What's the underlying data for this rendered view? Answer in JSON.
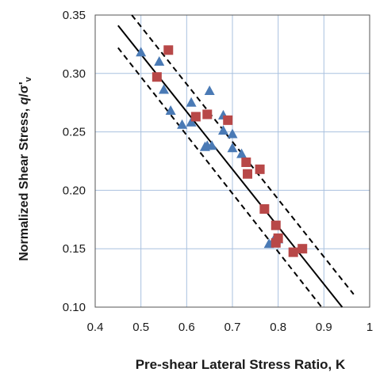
{
  "chart_data": {
    "type": "scatter",
    "title": "",
    "xlabel": "Pre-shear Lateral Stress Ratio, K",
    "ylabel_main": "Normalized Shear Stress, ",
    "ylabel_q": "q",
    "ylabel_slash": "/σ'",
    "ylabel_sub": "v",
    "xlim": [
      0.4,
      1.0
    ],
    "ylim": [
      0.1,
      0.35
    ],
    "xticks": [
      0.4,
      0.5,
      0.6,
      0.7,
      0.8,
      0.9,
      1.0
    ],
    "xtick_labels": [
      "0.4",
      "0.5",
      "0.6",
      "0.7",
      "0.8",
      "0.9",
      "1"
    ],
    "yticks": [
      0.1,
      0.15,
      0.2,
      0.25,
      0.3,
      0.35
    ],
    "ytick_labels": [
      "0.10",
      "0.15",
      "0.20",
      "0.25",
      "0.30",
      "0.35"
    ],
    "grid": true,
    "colors": {
      "triangle": "#4a7ab5",
      "square": "#b84848",
      "grid": "#a9c1df",
      "line": "#000000"
    },
    "series": [
      {
        "marker": "triangle",
        "x": [
          0.5,
          0.54,
          0.55,
          0.565,
          0.59,
          0.61,
          0.61,
          0.64,
          0.645,
          0.65,
          0.655,
          0.68,
          0.68,
          0.7,
          0.7,
          0.72,
          0.78,
          0.79,
          0.8
        ],
        "y": [
          0.318,
          0.31,
          0.286,
          0.268,
          0.256,
          0.275,
          0.258,
          0.237,
          0.238,
          0.285,
          0.238,
          0.264,
          0.251,
          0.248,
          0.236,
          0.231,
          0.154,
          0.157,
          0.158
        ]
      },
      {
        "marker": "square",
        "x": [
          0.535,
          0.56,
          0.62,
          0.645,
          0.69,
          0.73,
          0.733,
          0.76,
          0.77,
          0.795,
          0.795,
          0.8,
          0.833,
          0.853
        ],
        "y": [
          0.297,
          0.32,
          0.263,
          0.265,
          0.26,
          0.224,
          0.214,
          0.218,
          0.184,
          0.17,
          0.155,
          0.159,
          0.147,
          0.15
        ]
      }
    ],
    "lines": [
      {
        "style": "solid",
        "x": [
          0.45,
          0.94
        ],
        "y": [
          0.341,
          0.1
        ]
      },
      {
        "style": "dashed",
        "x": [
          0.48,
          0.965
        ],
        "y": [
          0.35,
          0.111
        ]
      },
      {
        "style": "dashed",
        "x": [
          0.45,
          0.895
        ],
        "y": [
          0.322,
          0.1
        ]
      }
    ]
  }
}
